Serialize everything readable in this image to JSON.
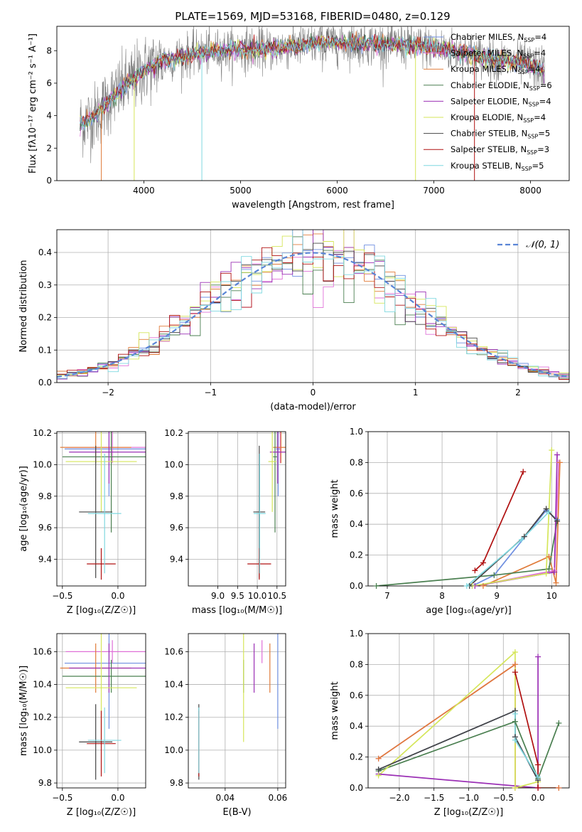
{
  "figure_title": "PLATE=1569, MJD=53168, FIBERID=0480, z=0.129",
  "colors": [
    "#6f8fe0",
    "#df70d8",
    "#e07b39",
    "#4a7f50",
    "#9b30b5",
    "#d5e65a",
    "#444444",
    "#b01010",
    "#7fd8e0"
  ],
  "fit_labels": [
    "Chabrier MILES, NSSP=4",
    "Salpeter MILES, NSSP=4",
    "Kroupa MILES, NSSP=4",
    "Chabrier ELODIE, NSSP=6",
    "Salpeter ELODIE, NSSP=4",
    "Kroupa ELODIE, NSSP=4",
    "Chabrier STELIB, NSSP=5",
    "Salpeter STELIB, NSSP=3",
    "Kroupa STELIB, NSSP=5"
  ],
  "chart_data": [
    {
      "id": "spectrum",
      "type": "line",
      "xlabel": "wavelength [Angstrom, rest frame]",
      "ylabel": "Flux [fλ10⁻¹⁷ erg cm⁻² s⁻¹ A⁻¹]",
      "xlim": [
        3100,
        8400
      ],
      "ylim": [
        0,
        9.5
      ],
      "xticks": [
        4000,
        5000,
        6000,
        7000,
        8000
      ],
      "yticks": [
        0,
        2,
        4,
        6,
        8
      ],
      "grid": false,
      "legend": "upper right",
      "continuum": {
        "x": [
          3340,
          3500,
          3650,
          3800,
          4000,
          4200,
          4500,
          4800,
          5000,
          5300,
          5600,
          6000,
          6500,
          7000,
          7300,
          7500,
          7700,
          8000,
          8150
        ],
        "y": [
          3.5,
          4.0,
          5.0,
          5.8,
          6.8,
          7.4,
          7.8,
          8.0,
          8.1,
          8.1,
          8.3,
          8.5,
          8.4,
          8.2,
          7.9,
          7.6,
          7.4,
          7.1,
          6.8
        ]
      },
      "observed_noise": 1.2,
      "dips": [
        {
          "x": 3560,
          "y": 0.0,
          "series": 2
        },
        {
          "x": 3900,
          "y": 0.0,
          "series": 5
        },
        {
          "x": 4600,
          "y": 0.0,
          "series": 8
        },
        {
          "x": 6810,
          "y": 0.0,
          "series": 5
        },
        {
          "x": 7420,
          "y": 0.0,
          "series": 7
        }
      ]
    },
    {
      "id": "residuals",
      "type": "bar",
      "xlabel": "(data-model)/error",
      "ylabel": "Normed distribution",
      "xlim": [
        -2.5,
        2.5
      ],
      "ylim": [
        0,
        0.47
      ],
      "xticks": [
        -2,
        -1,
        0,
        1,
        2
      ],
      "yticks": [
        0.0,
        0.1,
        0.2,
        0.3,
        0.4
      ],
      "grid": true,
      "legend": "upper right",
      "reference_label": "𝒩(0, 1)",
      "bin_width": 0.1
    },
    {
      "id": "age-vs-Z",
      "type": "scatter",
      "xlabel": "Z [log₁₀(Z/Z☉)]",
      "ylabel": "age  [log₁₀(age/yr)]",
      "xlim": [
        -0.55,
        0.25
      ],
      "ylim": [
        9.23,
        10.21
      ],
      "xticks": [
        -0.5,
        0.0
      ],
      "yticks": [
        9.4,
        9.6,
        9.8,
        10.0,
        10.2
      ],
      "grid": true,
      "points": [
        {
          "series": 0,
          "x": -0.08,
          "xerr": 0.4,
          "y": 10.1,
          "yerr": 0.3
        },
        {
          "series": 1,
          "x": -0.05,
          "xerr": 0.42,
          "y": 10.11,
          "yerr": 0.1
        },
        {
          "series": 2,
          "x": -0.2,
          "xerr": 0.32,
          "y": 10.11,
          "yerr": 0.1
        },
        {
          "series": 3,
          "x": -0.06,
          "xerr": 0.44,
          "y": 10.05,
          "yerr": 0.48
        },
        {
          "series": 4,
          "x": -0.08,
          "xerr": 0.36,
          "y": 10.08,
          "yerr": 0.2
        },
        {
          "series": 5,
          "x": -0.15,
          "xerr": 0.32,
          "y": 10.02,
          "yerr": 0.32
        },
        {
          "series": 6,
          "x": -0.2,
          "xerr": 0.15,
          "y": 9.7,
          "yerr": 0.42
        },
        {
          "series": 7,
          "x": -0.15,
          "xerr": 0.13,
          "y": 9.37,
          "yerr": 0.1
        },
        {
          "series": 8,
          "x": -0.12,
          "xerr": 0.15,
          "y": 9.69,
          "yerr": 0.38
        }
      ]
    },
    {
      "id": "age-vs-mass",
      "type": "scatter",
      "xlabel": "mass [log₁₀(M/M☉)]",
      "ylabel": "",
      "xlim": [
        8.25,
        10.72
      ],
      "ylim": [
        9.23,
        10.21
      ],
      "xticks": [
        9.0,
        9.5,
        10.0,
        10.5
      ],
      "yticks": [
        9.4,
        9.6,
        9.8,
        10.0,
        10.2
      ],
      "grid": true,
      "points": [
        {
          "series": 0,
          "x": 10.53,
          "xerr": 0.05,
          "y": 10.1,
          "yerr": 0.3
        },
        {
          "series": 1,
          "x": 10.58,
          "xerr": 0.05,
          "y": 10.11,
          "yerr": 0.1
        },
        {
          "series": 2,
          "x": 10.6,
          "xerr": 0.2,
          "y": 10.11,
          "yerr": 0.1
        },
        {
          "series": 3,
          "x": 10.45,
          "xerr": 0.05,
          "y": 10.05,
          "yerr": 0.48
        },
        {
          "series": 4,
          "x": 10.52,
          "xerr": 0.2,
          "y": 10.08,
          "yerr": 0.2
        },
        {
          "series": 5,
          "x": 10.38,
          "xerr": 0.1,
          "y": 10.02,
          "yerr": 0.32
        },
        {
          "series": 6,
          "x": 10.05,
          "xerr": 0.15,
          "y": 9.7,
          "yerr": 0.42
        },
        {
          "series": 7,
          "x": 10.05,
          "xerr": 0.3,
          "y": 9.37,
          "yerr": 0.1
        },
        {
          "series": 8,
          "x": 10.06,
          "xerr": 0.15,
          "y": 9.69,
          "yerr": 0.38
        }
      ]
    },
    {
      "id": "weight-vs-age",
      "type": "line",
      "xlabel": "age  [log₁₀(age/yr)]",
      "ylabel": "mass weight",
      "xlim": [
        6.65,
        10.32
      ],
      "ylim": [
        0,
        1.0
      ],
      "xticks": [
        7,
        8,
        9,
        10
      ],
      "yticks": [
        0.0,
        0.2,
        0.4,
        0.6,
        0.8,
        1.0
      ],
      "grid": true,
      "series": [
        {
          "series": 0,
          "x": [
            8.55,
            8.95,
            9.9,
            10.1
          ],
          "y": [
            0.0,
            0.07,
            0.49,
            0.43
          ]
        },
        {
          "series": 1,
          "x": [
            8.6,
            10.05,
            10.13
          ],
          "y": [
            0.0,
            0.1,
            0.8
          ]
        },
        {
          "series": 2,
          "x": [
            8.75,
            9.95,
            10.08,
            10.15
          ],
          "y": [
            0.0,
            0.19,
            0.02,
            0.8
          ]
        },
        {
          "series": 3,
          "x": [
            6.8,
            8.95,
            9.95,
            10.1
          ],
          "y": [
            0.0,
            0.07,
            0.11,
            0.42
          ]
        },
        {
          "series": 4,
          "x": [
            8.6,
            10.05,
            10.1
          ],
          "y": [
            0.0,
            0.09,
            0.85
          ]
        },
        {
          "series": 5,
          "x": [
            8.55,
            9.9,
            10.0
          ],
          "y": [
            0.0,
            0.08,
            0.88
          ]
        },
        {
          "series": 6,
          "x": [
            8.5,
            9.5,
            9.9,
            10.1
          ],
          "y": [
            0.0,
            0.32,
            0.5,
            0.42
          ]
        },
        {
          "series": 7,
          "x": [
            8.6,
            8.75,
            9.48
          ],
          "y": [
            0.1,
            0.15,
            0.74
          ]
        },
        {
          "series": 8,
          "x": [
            8.45,
            9.45,
            9.95
          ],
          "y": [
            0.0,
            0.3,
            0.48
          ]
        }
      ]
    },
    {
      "id": "mass-vs-Z",
      "type": "scatter",
      "xlabel": "Z [log₁₀(Z/Z☉)]",
      "ylabel": "mass [log₁₀(M/M☉)]",
      "xlim": [
        -0.55,
        0.25
      ],
      "ylim": [
        9.77,
        10.71
      ],
      "xticks": [
        -0.5,
        0.0
      ],
      "yticks": [
        9.8,
        10.0,
        10.2,
        10.4,
        10.6
      ],
      "grid": true,
      "points": [
        {
          "series": 0,
          "x": -0.08,
          "xerr": 0.4,
          "y": 10.53,
          "yerr": 0.4
        },
        {
          "series": 1,
          "x": -0.05,
          "xerr": 0.42,
          "y": 10.6,
          "yerr": 0.07
        },
        {
          "series": 2,
          "x": -0.2,
          "xerr": 0.32,
          "y": 10.5,
          "yerr": 0.15
        },
        {
          "series": 3,
          "x": -0.06,
          "xerr": 0.44,
          "y": 10.45,
          "yerr": 0.1
        },
        {
          "series": 4,
          "x": -0.08,
          "xerr": 0.36,
          "y": 10.5,
          "yerr": 0.15
        },
        {
          "series": 5,
          "x": -0.15,
          "xerr": 0.32,
          "y": 10.38,
          "yerr": 0.33
        },
        {
          "series": 6,
          "x": -0.2,
          "xerr": 0.15,
          "y": 10.05,
          "yerr": 0.23
        },
        {
          "series": 7,
          "x": -0.15,
          "xerr": 0.13,
          "y": 10.04,
          "yerr": 0.2
        },
        {
          "series": 8,
          "x": -0.12,
          "xerr": 0.15,
          "y": 10.06,
          "yerr": 0.2
        }
      ]
    },
    {
      "id": "mass-vs-ebv",
      "type": "scatter",
      "xlabel": "E(B-V)",
      "ylabel": "",
      "xlim": [
        0.026,
        0.063
      ],
      "ylim": [
        9.77,
        10.71
      ],
      "xticks": [
        0.04,
        0.06
      ],
      "yticks": [
        9.8,
        10.0,
        10.2,
        10.4,
        10.6
      ],
      "grid": true,
      "points": [
        {
          "series": 0,
          "x": 0.06,
          "y": 10.53,
          "yerr": 0.4
        },
        {
          "series": 1,
          "x": 0.054,
          "y": 10.6,
          "yerr": 0.07
        },
        {
          "series": 2,
          "x": 0.057,
          "y": 10.5,
          "yerr": 0.15
        },
        {
          "series": 3,
          "x": 0.047,
          "y": 10.45,
          "yerr": 0.1
        },
        {
          "series": 4,
          "x": 0.051,
          "y": 10.5,
          "yerr": 0.15
        },
        {
          "series": 5,
          "x": 0.047,
          "y": 10.38,
          "yerr": 0.33
        },
        {
          "series": 6,
          "x": 0.03,
          "y": 10.05,
          "yerr": 0.23
        },
        {
          "series": 7,
          "x": 0.03,
          "y": 10.04,
          "yerr": 0.2
        },
        {
          "series": 8,
          "x": 0.03,
          "y": 10.06,
          "yerr": 0.2
        }
      ]
    },
    {
      "id": "weight-vs-Z",
      "type": "line",
      "xlabel": "Z [log₁₀(Z/Z☉)]",
      "ylabel": "mass weight",
      "xlim": [
        -2.45,
        0.45
      ],
      "ylim": [
        0,
        1.0
      ],
      "xticks": [
        -2.0,
        -1.5,
        -1.0,
        -0.5,
        0.0
      ],
      "yticks": [
        0.0,
        0.2,
        0.4,
        0.6,
        0.8,
        1.0
      ],
      "grid": true,
      "series": [
        {
          "series": 0,
          "x": [
            -2.3,
            -0.33,
            -0.33,
            0.0
          ],
          "y": [
            0.12,
            0.5,
            0.33,
            0.05
          ]
        },
        {
          "series": 1,
          "x": [
            -2.3,
            -0.33,
            -0.33,
            0.3
          ],
          "y": [
            0.19,
            0.8,
            0.0,
            0.0
          ]
        },
        {
          "series": 2,
          "x": [
            -2.3,
            -0.33,
            -0.33,
            0.3
          ],
          "y": [
            0.19,
            0.8,
            0.0,
            0.0
          ]
        },
        {
          "series": 3,
          "x": [
            -2.3,
            -0.33,
            0.0,
            0.3
          ],
          "y": [
            0.11,
            0.43,
            0.06,
            0.42
          ]
        },
        {
          "series": 4,
          "x": [
            -2.3,
            0.0,
            0.0
          ],
          "y": [
            0.09,
            0.0,
            0.85
          ]
        },
        {
          "series": 5,
          "x": [
            -2.3,
            -0.33,
            -0.33,
            0.0
          ],
          "y": [
            0.08,
            0.88,
            0.0,
            0.04
          ]
        },
        {
          "series": 6,
          "x": [
            -2.3,
            -0.33,
            -0.33,
            0.0
          ],
          "y": [
            0.12,
            0.5,
            0.33,
            0.05
          ]
        },
        {
          "series": 7,
          "x": [
            -0.33,
            0.0,
            0.0
          ],
          "y": [
            0.75,
            0.15,
            0.0
          ]
        },
        {
          "series": 8,
          "x": [
            -0.33,
            -0.33,
            0.0
          ],
          "y": [
            0.48,
            0.31,
            0.07
          ]
        }
      ]
    }
  ]
}
